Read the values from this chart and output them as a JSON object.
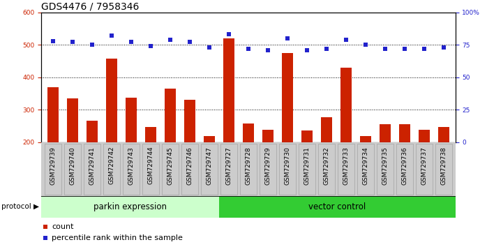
{
  "title": "GDS4476 / 7958346",
  "samples": [
    "GSM729739",
    "GSM729740",
    "GSM729741",
    "GSM729742",
    "GSM729743",
    "GSM729744",
    "GSM729745",
    "GSM729746",
    "GSM729747",
    "GSM729727",
    "GSM729728",
    "GSM729729",
    "GSM729730",
    "GSM729731",
    "GSM729732",
    "GSM729733",
    "GSM729734",
    "GSM729735",
    "GSM729736",
    "GSM729737",
    "GSM729738"
  ],
  "counts": [
    370,
    335,
    265,
    457,
    336,
    247,
    365,
    330,
    218,
    520,
    257,
    238,
    475,
    235,
    277,
    430,
    218,
    255,
    255,
    237,
    247
  ],
  "percentiles": [
    78,
    77,
    75,
    82,
    77,
    74,
    79,
    77,
    73,
    83,
    72,
    71,
    80,
    71,
    72,
    79,
    75,
    72,
    72,
    72,
    73
  ],
  "parkin_count": 9,
  "vector_count": 12,
  "parkin_label": "parkin expression",
  "vector_label": "vector control",
  "protocol_label": "protocol",
  "left_ylim": [
    200,
    600
  ],
  "right_ylim": [
    0,
    100
  ],
  "left_yticks": [
    200,
    300,
    400,
    500,
    600
  ],
  "right_yticks": [
    0,
    25,
    50,
    75,
    100
  ],
  "grid_lines": [
    300,
    400,
    500
  ],
  "bar_color": "#cc2200",
  "dot_color": "#2222cc",
  "parkin_bg": "#ccffcc",
  "vector_bg": "#33cc33",
  "tick_bg": "#cccccc",
  "legend_count_label": "count",
  "legend_pct_label": "percentile rank within the sample",
  "title_fontsize": 10,
  "tick_fontsize": 6.5,
  "legend_fontsize": 8
}
